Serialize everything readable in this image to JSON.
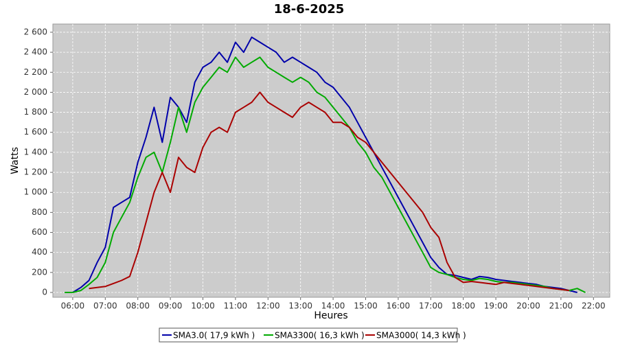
{
  "chart_data": {
    "type": "line",
    "title": "18-6-2025",
    "x_label": "Heures",
    "y_label": "Watts",
    "x": [
      5.75,
      6,
      6.25,
      6.5,
      6.75,
      7,
      7.25,
      7.5,
      7.75,
      8,
      8.25,
      8.5,
      8.75,
      9,
      9.25,
      9.5,
      9.75,
      10,
      10.25,
      10.5,
      10.75,
      11,
      11.25,
      11.5,
      11.75,
      12,
      12.25,
      12.5,
      12.75,
      13,
      13.25,
      13.5,
      13.75,
      14,
      14.25,
      14.5,
      14.75,
      15,
      15.25,
      15.5,
      15.75,
      16,
      16.25,
      16.5,
      16.75,
      17,
      17.25,
      17.5,
      17.75,
      18,
      18.25,
      18.5,
      18.75,
      19,
      19.25,
      19.5,
      19.75,
      20,
      20.25,
      20.5,
      20.75,
      21,
      21.25,
      21.5,
      21.75
    ],
    "series": [
      {
        "name": "SMA3.0( 17,9 kWh )",
        "color": "#0000aa",
        "values": [
          null,
          0,
          50,
          120,
          300,
          450,
          850,
          900,
          950,
          1300,
          1550,
          1850,
          1500,
          1950,
          1850,
          1700,
          2100,
          2250,
          2300,
          2400,
          2300,
          2500,
          2400,
          2550,
          2500,
          2450,
          2400,
          2300,
          2350,
          2300,
          2250,
          2200,
          2100,
          2050,
          1950,
          1850,
          1700,
          1550,
          1400,
          1250,
          1100,
          950,
          800,
          650,
          500,
          350,
          250,
          180,
          170,
          150,
          130,
          160,
          150,
          130,
          120,
          110,
          100,
          90,
          80,
          60,
          50,
          40,
          20,
          0,
          null
        ]
      },
      {
        "name": "SMA3300( 16,3 kWh )",
        "color": "#00aa00",
        "values": [
          0,
          0,
          20,
          80,
          150,
          300,
          600,
          750,
          900,
          1150,
          1350,
          1400,
          1200,
          1500,
          1850,
          1600,
          1900,
          2050,
          2150,
          2250,
          2200,
          2350,
          2250,
          2300,
          2350,
          2250,
          2200,
          2150,
          2100,
          2150,
          2100,
          2000,
          1950,
          1850,
          1750,
          1650,
          1500,
          1400,
          1250,
          1150,
          1000,
          850,
          700,
          550,
          400,
          250,
          200,
          180,
          150,
          130,
          120,
          140,
          130,
          110,
          100,
          100,
          90,
          80,
          70,
          60,
          40,
          30,
          20,
          40,
          0
        ]
      },
      {
        "name": "SMA3000( 14,3 kWh )",
        "color": "#aa0000",
        "values": [
          null,
          null,
          null,
          40,
          50,
          60,
          90,
          120,
          160,
          400,
          700,
          1000,
          1200,
          1000,
          1350,
          1250,
          1200,
          1450,
          1600,
          1650,
          1600,
          1800,
          1850,
          1900,
          2000,
          1900,
          1850,
          1800,
          1750,
          1850,
          1900,
          1850,
          1800,
          1700,
          1700,
          1650,
          1550,
          1500,
          1400,
          1300,
          1200,
          1100,
          1000,
          900,
          800,
          650,
          550,
          300,
          150,
          100,
          110,
          100,
          90,
          80,
          100,
          90,
          80,
          70,
          60,
          50,
          40,
          30,
          20,
          null,
          null
        ]
      }
    ],
    "xlim": [
      5.39,
      22.5
    ],
    "ylim": [
      -48,
      2682
    ],
    "xticks": [
      {
        "value": 6,
        "label": "06:00"
      },
      {
        "value": 7,
        "label": "07:00"
      },
      {
        "value": 8,
        "label": "08:00"
      },
      {
        "value": 9,
        "label": "09:00"
      },
      {
        "value": 10,
        "label": "10:00"
      },
      {
        "value": 11,
        "label": "11:00"
      },
      {
        "value": 12,
        "label": "12:00"
      },
      {
        "value": 13,
        "label": "13:00"
      },
      {
        "value": 14,
        "label": "14:00"
      },
      {
        "value": 15,
        "label": "15:00"
      },
      {
        "value": 16,
        "label": "16:00"
      },
      {
        "value": 17,
        "label": "17:00"
      },
      {
        "value": 18,
        "label": "18:00"
      },
      {
        "value": 19,
        "label": "19:00"
      },
      {
        "value": 20,
        "label": "20:00"
      },
      {
        "value": 21,
        "label": "21:00"
      },
      {
        "value": 22,
        "label": "22:00"
      }
    ],
    "yticks": [
      0,
      200,
      400,
      600,
      800,
      {
        "value": 1000,
        "label": "1 000"
      },
      {
        "value": 1200,
        "label": "1 200"
      },
      {
        "value": 1400,
        "label": "1 400"
      },
      {
        "value": 1600,
        "label": "1 600"
      },
      {
        "value": 1800,
        "label": "1 800"
      },
      {
        "value": 2000,
        "label": "2 000"
      },
      {
        "value": 2200,
        "label": "2 200"
      },
      {
        "value": 2400,
        "label": "2 400"
      },
      {
        "value": 2600,
        "label": "2 600"
      }
    ],
    "grid": true
  }
}
